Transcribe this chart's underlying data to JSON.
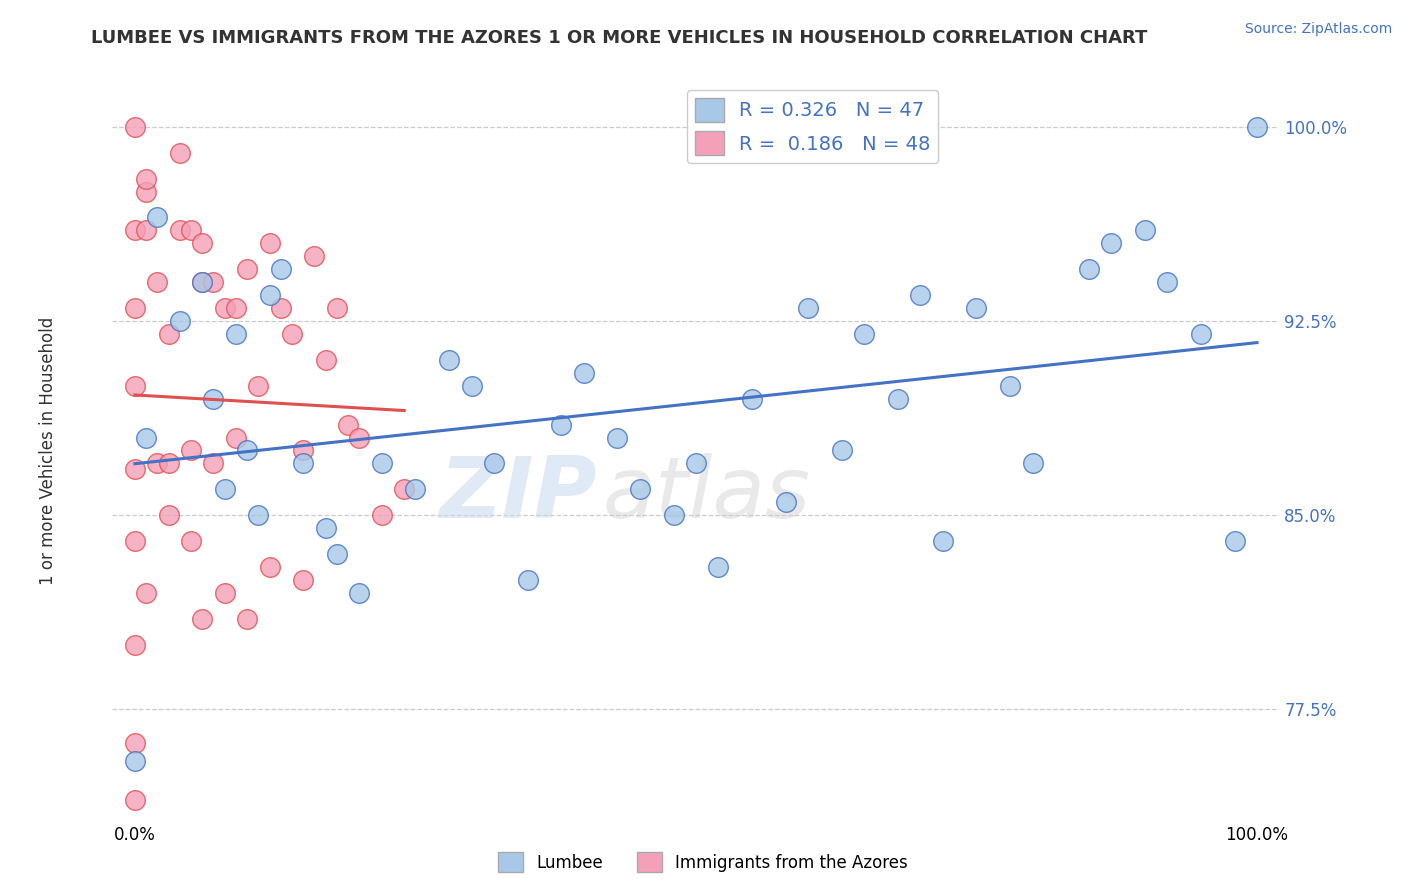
{
  "title": "LUMBEE VS IMMIGRANTS FROM THE AZORES 1 OR MORE VEHICLES IN HOUSEHOLD CORRELATION CHART",
  "source_text": "Source: ZipAtlas.com",
  "ylabel": "1 or more Vehicles in Household",
  "R1": 0.326,
  "N1": 47,
  "R2": 0.186,
  "N2": 48,
  "xlim": [
    -0.02,
    1.02
  ],
  "ylim": [
    0.732,
    1.018
  ],
  "yticks": [
    0.775,
    0.85,
    0.925,
    1.0
  ],
  "ytick_labels": [
    "77.5%",
    "85.0%",
    "92.5%",
    "100.0%"
  ],
  "xticks": [
    0.0,
    0.25,
    0.5,
    0.75,
    1.0
  ],
  "xtick_labels": [
    "0.0%",
    "",
    "",
    "",
    "100.0%"
  ],
  "color_blue": "#a8c8e8",
  "color_pink": "#f4a0b8",
  "line_blue": "#4472c4",
  "line_pink": "#e05050",
  "bg": "#ffffff",
  "legend_label1": "Lumbee",
  "legend_label2": "Immigrants from the Azores",
  "blue_x": [
    0.0,
    0.01,
    0.02,
    0.04,
    0.06,
    0.07,
    0.08,
    0.09,
    0.1,
    0.11,
    0.12,
    0.13,
    0.15,
    0.17,
    0.18,
    0.2,
    0.22,
    0.25,
    0.28,
    0.3,
    0.32,
    0.35,
    0.38,
    0.4,
    0.43,
    0.45,
    0.48,
    0.5,
    0.52,
    0.55,
    0.58,
    0.6,
    0.63,
    0.65,
    0.68,
    0.7,
    0.72,
    0.75,
    0.78,
    0.8,
    0.85,
    0.87,
    0.9,
    0.92,
    0.95,
    0.98,
    1.0
  ],
  "blue_y": [
    0.755,
    0.88,
    0.965,
    0.925,
    0.94,
    0.895,
    0.86,
    0.92,
    0.875,
    0.85,
    0.935,
    0.945,
    0.87,
    0.845,
    0.835,
    0.82,
    0.87,
    0.86,
    0.91,
    0.9,
    0.87,
    0.825,
    0.885,
    0.905,
    0.88,
    0.86,
    0.85,
    0.87,
    0.83,
    0.895,
    0.855,
    0.93,
    0.875,
    0.92,
    0.895,
    0.935,
    0.84,
    0.93,
    0.9,
    0.87,
    0.945,
    0.955,
    0.96,
    0.94,
    0.92,
    0.84,
    1.0
  ],
  "pink_x": [
    0.0,
    0.0,
    0.0,
    0.0,
    0.0,
    0.0,
    0.0,
    0.0,
    0.0,
    0.01,
    0.01,
    0.01,
    0.02,
    0.02,
    0.03,
    0.03,
    0.04,
    0.04,
    0.05,
    0.05,
    0.06,
    0.06,
    0.07,
    0.08,
    0.09,
    0.1,
    0.11,
    0.12,
    0.13,
    0.14,
    0.15,
    0.16,
    0.17,
    0.18,
    0.19,
    0.2,
    0.22,
    0.24,
    0.1,
    0.12,
    0.15,
    0.05,
    0.06,
    0.08,
    0.03,
    0.01,
    0.07,
    0.09
  ],
  "pink_y": [
    0.74,
    0.762,
    0.8,
    0.84,
    0.868,
    0.9,
    0.93,
    0.96,
    1.0,
    0.975,
    0.98,
    0.96,
    0.94,
    0.87,
    0.87,
    0.92,
    0.99,
    0.96,
    0.96,
    0.875,
    0.955,
    0.94,
    0.94,
    0.93,
    0.93,
    0.945,
    0.9,
    0.955,
    0.93,
    0.92,
    0.875,
    0.95,
    0.91,
    0.93,
    0.885,
    0.88,
    0.85,
    0.86,
    0.81,
    0.83,
    0.825,
    0.84,
    0.81,
    0.82,
    0.85,
    0.82,
    0.87,
    0.88
  ]
}
